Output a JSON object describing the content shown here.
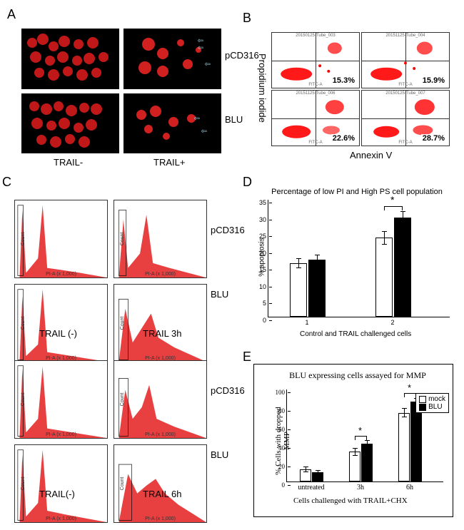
{
  "panel_labels": {
    "A": "A",
    "B": "B",
    "C": "C",
    "D": "D",
    "E": "E"
  },
  "A": {
    "row_labels": [
      "pCD316",
      "BLU"
    ],
    "col_labels": [
      "TRAIL-",
      "TRAIL+"
    ],
    "bg_color": "#000000",
    "cell_color": "#d02020",
    "arrow_color": "#a0d0e0"
  },
  "B": {
    "y_axis": "Propidium iodide",
    "x_axis": "Annexin V",
    "facs_x_label": "FITC-A",
    "dot_color": "#ff0000",
    "plots": [
      {
        "title": "20150125-Tube_003",
        "pct": "15.3%"
      },
      {
        "title": "20151125-Tube_004",
        "pct": "15.9%"
      },
      {
        "title": "20151125-Tube_006",
        "pct": "22.6%"
      },
      {
        "title": "20150125-Tube_007",
        "pct": "28.7%"
      }
    ]
  },
  "C": {
    "row_labels_top": [
      "pCD316",
      "BLU"
    ],
    "col_labels_top": [
      "TRAIL (-)",
      "TRAIL 3h"
    ],
    "row_labels_bot": [
      "pCD316",
      "BLU"
    ],
    "col_labels_bot": [
      "TRAIL(-)",
      "TRAIL 6h"
    ],
    "histo_ylabel": "Count",
    "histo_xlabel": "PI-A (x 1,000)",
    "gate_label": "P2",
    "fill_color": "#e84040"
  },
  "D": {
    "title": "Percentage of low PI and High PS cell population",
    "y_label": "% apoptosis",
    "x_label": "Control and TRAIL challenged cells",
    "x_categories": [
      "1",
      "2"
    ],
    "ylim": [
      0,
      35
    ],
    "ytick_step": 5,
    "yticks": [
      "0",
      "5",
      "10",
      "15",
      "20",
      "25",
      "30",
      "35"
    ],
    "bar_colors": {
      "white": "#ffffff",
      "black": "#000000"
    },
    "groups": [
      {
        "white": 16,
        "white_err": 1.5,
        "black": 17,
        "black_err": 1.5
      },
      {
        "white": 23.5,
        "white_err": 2,
        "black": 29.5,
        "black_err": 2
      }
    ],
    "sig_marker": "*"
  },
  "E": {
    "title": "BLU expressing cells assayed for MMP",
    "y_label": "% Cells with dropped MMP",
    "x_label": "Cells challenged with TRAIL+CHX",
    "x_categories": [
      "untreated",
      "3h",
      "6h"
    ],
    "ylim": [
      0,
      100
    ],
    "ytick_step": 20,
    "yticks": [
      "0",
      "20",
      "40",
      "60",
      "80",
      "100"
    ],
    "legend": [
      {
        "label": "mock",
        "color": "#ffffff"
      },
      {
        "label": "BLU",
        "color": "#000000"
      }
    ],
    "groups": [
      {
        "white": 13,
        "white_err": 3,
        "black": 10,
        "black_err": 2
      },
      {
        "white": 32,
        "white_err": 4,
        "black": 41,
        "black_err": 4
      },
      {
        "white": 74,
        "white_err": 5,
        "black": 86,
        "black_err": 4
      }
    ],
    "sig_marker": "*"
  }
}
